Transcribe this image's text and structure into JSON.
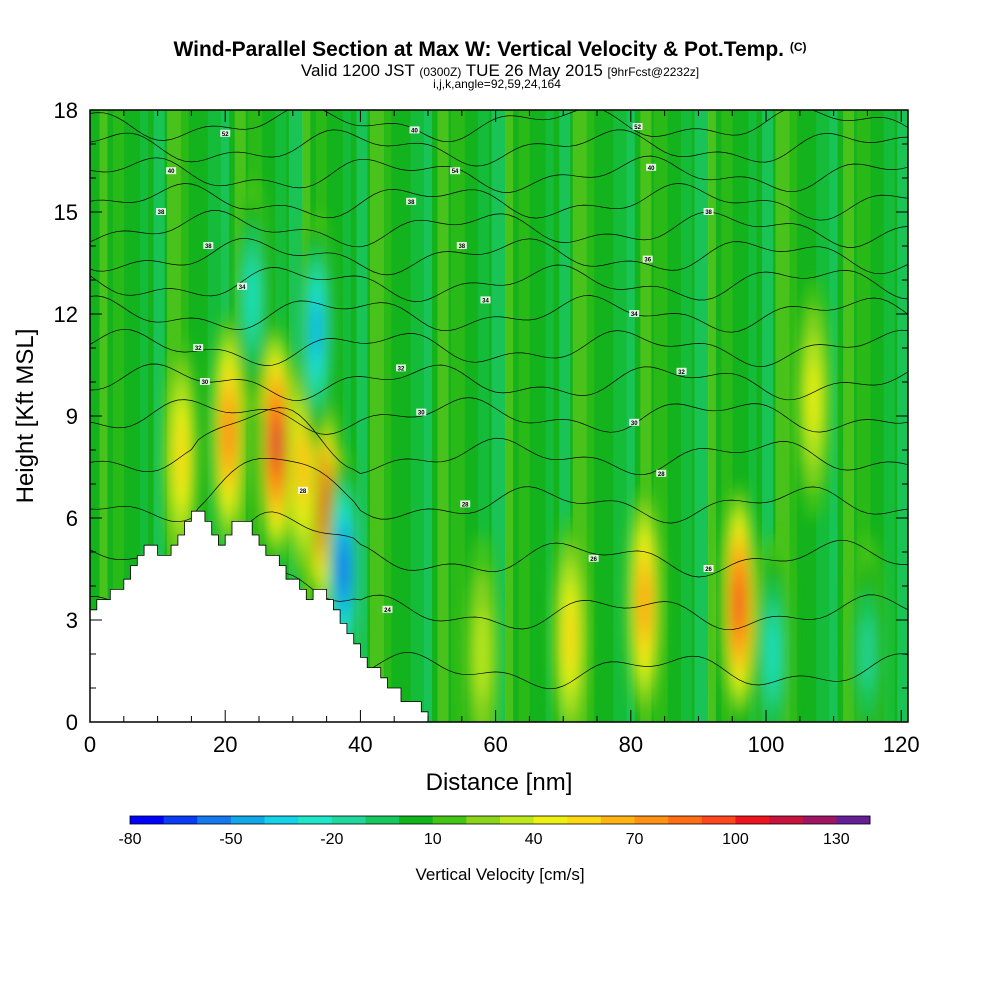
{
  "header": {
    "title_main": "Wind-Parallel Section at Max W: Vertical Velocity & Pot.Temp.",
    "title_mark": "(C)",
    "subtitle_pre": "Valid 1200 JST",
    "subtitle_utc": "(0300Z)",
    "subtitle_date": "TUE 26 May 2015",
    "subtitle_fcst": "[9hrFcst@2232z]",
    "subtitle_indices": "i,j,k,angle=92,59,24,164"
  },
  "chart_data": {
    "type": "heatmap",
    "xlabel": "Distance [nm]",
    "ylabel": "Height [Kft MSL]",
    "xlim": [
      0,
      121
    ],
    "ylim": [
      0,
      18
    ],
    "x_ticks": [
      "0",
      "20",
      "40",
      "60",
      "80",
      "100",
      "120"
    ],
    "y_ticks": [
      "0",
      "3",
      "6",
      "9",
      "12",
      "15",
      "18"
    ],
    "colorbar": {
      "label": "Vertical Velocity [cm/s]",
      "range": [
        -80,
        140
      ],
      "step": 10,
      "tick_labels": [
        "-80",
        "-50",
        "-20",
        "10",
        "40",
        "70",
        "100",
        "130"
      ],
      "colors": [
        "#0000ff",
        "#0a3cf5",
        "#1478ee",
        "#10a8e8",
        "#14d2e8",
        "#1ee6c8",
        "#20d89c",
        "#17c860",
        "#12b41e",
        "#44c414",
        "#8ad41a",
        "#bce81c",
        "#eef014",
        "#ffd814",
        "#ffb414",
        "#ff9114",
        "#ff6e14",
        "#ff461e",
        "#f0141e",
        "#c8143c",
        "#a01464",
        "#641e96"
      ]
    },
    "velocity_cores": [
      {
        "x": 13.5,
        "y": 7.8,
        "value": 50
      },
      {
        "x": 20.5,
        "y": 8.5,
        "value": 80
      },
      {
        "x": 27.5,
        "y": 8.2,
        "value": 110
      },
      {
        "x": 34.5,
        "y": 6.5,
        "value": 90
      },
      {
        "x": 31.5,
        "y": 7.5,
        "value": 60
      },
      {
        "x": 37.5,
        "y": 4.5,
        "value": -70
      },
      {
        "x": 33.5,
        "y": 11.5,
        "value": -45
      },
      {
        "x": 24.0,
        "y": 12.5,
        "value": -30
      },
      {
        "x": 82.0,
        "y": 3.5,
        "value": 70
      },
      {
        "x": 96.0,
        "y": 3.5,
        "value": 95
      },
      {
        "x": 71.0,
        "y": 2.5,
        "value": 45
      },
      {
        "x": 107.0,
        "y": 9.5,
        "value": 35
      },
      {
        "x": 58.0,
        "y": 2.0,
        "value": 25
      },
      {
        "x": 101.0,
        "y": 2.0,
        "value": -25
      },
      {
        "x": 115.0,
        "y": 2.0,
        "value": -20
      }
    ],
    "theta_labels": [
      {
        "text": "52",
        "x": 20.0,
        "y": 17.3
      },
      {
        "text": "40",
        "x": 48.0,
        "y": 17.4
      },
      {
        "text": "52",
        "x": 81.0,
        "y": 17.5
      },
      {
        "text": "40",
        "x": 12.0,
        "y": 16.2
      },
      {
        "text": "54",
        "x": 54.0,
        "y": 16.2
      },
      {
        "text": "40",
        "x": 83.0,
        "y": 16.3
      },
      {
        "text": "38",
        "x": 10.5,
        "y": 15.0
      },
      {
        "text": "38",
        "x": 47.5,
        "y": 15.3
      },
      {
        "text": "38",
        "x": 91.5,
        "y": 15.0
      },
      {
        "text": "38",
        "x": 17.5,
        "y": 14.0
      },
      {
        "text": "38",
        "x": 55.0,
        "y": 14.0
      },
      {
        "text": "36",
        "x": 82.5,
        "y": 13.6
      },
      {
        "text": "34",
        "x": 22.5,
        "y": 12.8
      },
      {
        "text": "34",
        "x": 58.5,
        "y": 12.4
      },
      {
        "text": "34",
        "x": 80.5,
        "y": 12.0
      },
      {
        "text": "32",
        "x": 16.0,
        "y": 11.0
      },
      {
        "text": "32",
        "x": 46.0,
        "y": 10.4
      },
      {
        "text": "32",
        "x": 87.5,
        "y": 10.3
      },
      {
        "text": "30",
        "x": 17.0,
        "y": 10.0
      },
      {
        "text": "30",
        "x": 49.0,
        "y": 9.1
      },
      {
        "text": "30",
        "x": 80.5,
        "y": 8.8
      },
      {
        "text": "28",
        "x": 31.5,
        "y": 6.8
      },
      {
        "text": "28",
        "x": 55.5,
        "y": 6.4
      },
      {
        "text": "28",
        "x": 84.5,
        "y": 7.3
      },
      {
        "text": "26",
        "x": 74.5,
        "y": 4.8
      },
      {
        "text": "26",
        "x": 91.5,
        "y": 4.5
      },
      {
        "text": "24",
        "x": 44.0,
        "y": 3.3
      }
    ]
  }
}
